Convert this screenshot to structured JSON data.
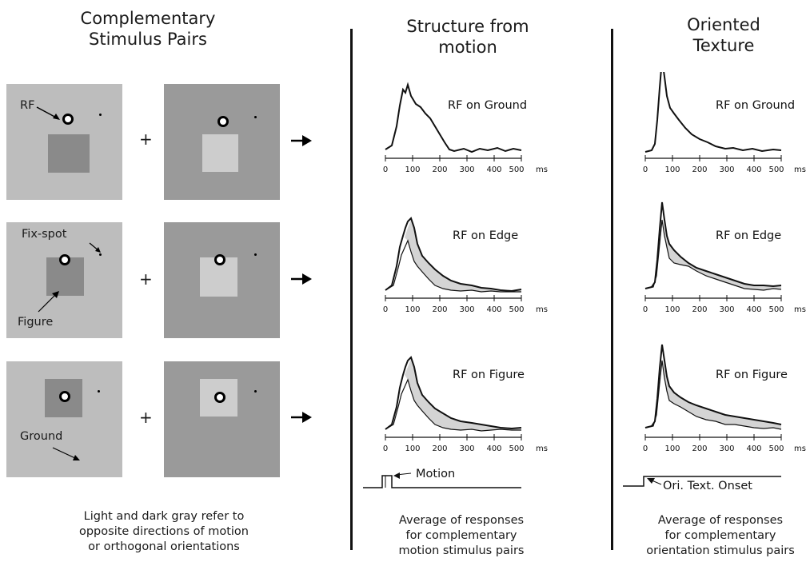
{
  "left": {
    "title_line1": "Complementary",
    "title_line2": "Stimulus Pairs",
    "labels": {
      "rf": "RF",
      "fixspot": "Fix-spot",
      "figure": "Figure",
      "ground": "Ground"
    },
    "plus": "+",
    "caption": [
      "Light and dark gray refer to",
      "opposite directions of motion",
      "or orthogonal orientations"
    ]
  },
  "middle": {
    "title_line1": "Structure from",
    "title_line2": "motion",
    "plot_labels": [
      "RF on Ground",
      "RF on Edge",
      "RF on Figure"
    ],
    "ticks": [
      "0",
      "100",
      "200",
      "300",
      "400",
      "500"
    ],
    "unit": "ms",
    "stimulus_label": "Motion",
    "caption": [
      "Average of responses",
      "for complementary",
      "motion stimulus pairs"
    ]
  },
  "right": {
    "title_line1": "Oriented",
    "title_line2": "Texture",
    "plot_labels": [
      "RF on Ground",
      "RF on Edge",
      "RF on Figure"
    ],
    "ticks": [
      "0",
      "100",
      "200",
      "300",
      "400",
      "500"
    ],
    "unit": "ms",
    "stimulus_label": "Ori. Text. Onset",
    "caption": [
      "Average of responses",
      "for complementary",
      "orientation stimulus pairs"
    ]
  }
}
